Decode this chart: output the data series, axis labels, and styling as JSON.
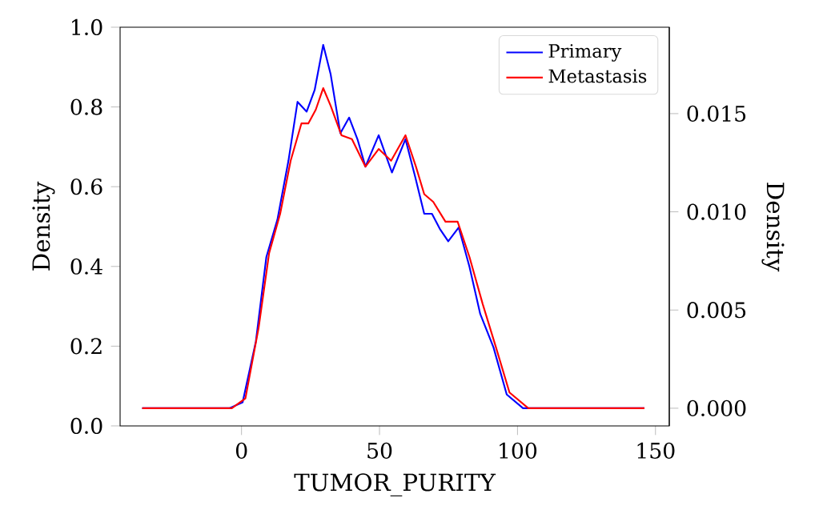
{
  "chart_data": {
    "type": "line",
    "xlabel": "TUMOR_PURITY",
    "ylabel": "Density",
    "y2label": "Density",
    "xlim": [
      -44,
      155
    ],
    "xticks": [
      0,
      50,
      100,
      150
    ],
    "ylim": [
      0,
      1
    ],
    "yticks": [
      {
        "value": 0,
        "label": "0.0"
      },
      {
        "value": 0.2,
        "label": "0.2"
      },
      {
        "value": 0.4,
        "label": "0.4"
      },
      {
        "value": 0.6,
        "label": "0.6"
      },
      {
        "value": 0.8,
        "label": "0.8"
      },
      {
        "value": 1,
        "label": "1.0"
      }
    ],
    "y2lim": [
      -0.0009,
      0.0194
    ],
    "y2ticks": [
      {
        "value": 0,
        "label": "0.000"
      },
      {
        "value": 0.005,
        "label": "0.005"
      },
      {
        "value": 0.01,
        "label": "0.010"
      },
      {
        "value": 0.015,
        "label": "0.015"
      }
    ],
    "legend": "top right",
    "marker": "none",
    "line_style": "solid",
    "series": [
      {
        "name": "Primary",
        "color": "#0000ff",
        "axis": "y2",
        "x": [
          -36,
          -4.4,
          0.4,
          5.2,
          9,
          13,
          17,
          20.3,
          23.6,
          26.5,
          29.6,
          32.3,
          35.8,
          39,
          42,
          44.9,
          49.7,
          54.5,
          59.4,
          62.9,
          66.2,
          69,
          72,
          74.9,
          78.7,
          82.6,
          86.5,
          91.3,
          96.1,
          102,
          146
        ],
        "values": [
          0,
          0,
          0.0003,
          0.0034,
          0.0077,
          0.0096,
          0.0126,
          0.0156,
          0.0151,
          0.0162,
          0.0185,
          0.017,
          0.014,
          0.0148,
          0.0137,
          0.0123,
          0.0139,
          0.012,
          0.0137,
          0.0118,
          0.0099,
          0.0099,
          0.0091,
          0.0085,
          0.0092,
          0.0072,
          0.0048,
          0.0031,
          0.0007,
          0,
          0
        ]
      },
      {
        "name": "Metastasis",
        "color": "#ff0000",
        "axis": "y2",
        "x": [
          -36,
          -3.5,
          1.4,
          6.2,
          10,
          14,
          17.8,
          21.7,
          24.2,
          26.9,
          29.6,
          32.3,
          36.2,
          40,
          44.9,
          49.7,
          54.2,
          59.4,
          63.2,
          66.2,
          69.5,
          73.9,
          78.3,
          82.6,
          87.4,
          92.2,
          97.1,
          103.9,
          146
        ],
        "values": [
          0,
          0,
          0.0005,
          0.0041,
          0.0079,
          0.0099,
          0.0126,
          0.0145,
          0.0145,
          0.0152,
          0.0163,
          0.0154,
          0.0139,
          0.0137,
          0.0123,
          0.0132,
          0.0126,
          0.0139,
          0.0123,
          0.0109,
          0.0105,
          0.0095,
          0.0095,
          0.0077,
          0.0053,
          0.0031,
          0.0008,
          0,
          0
        ]
      }
    ]
  }
}
